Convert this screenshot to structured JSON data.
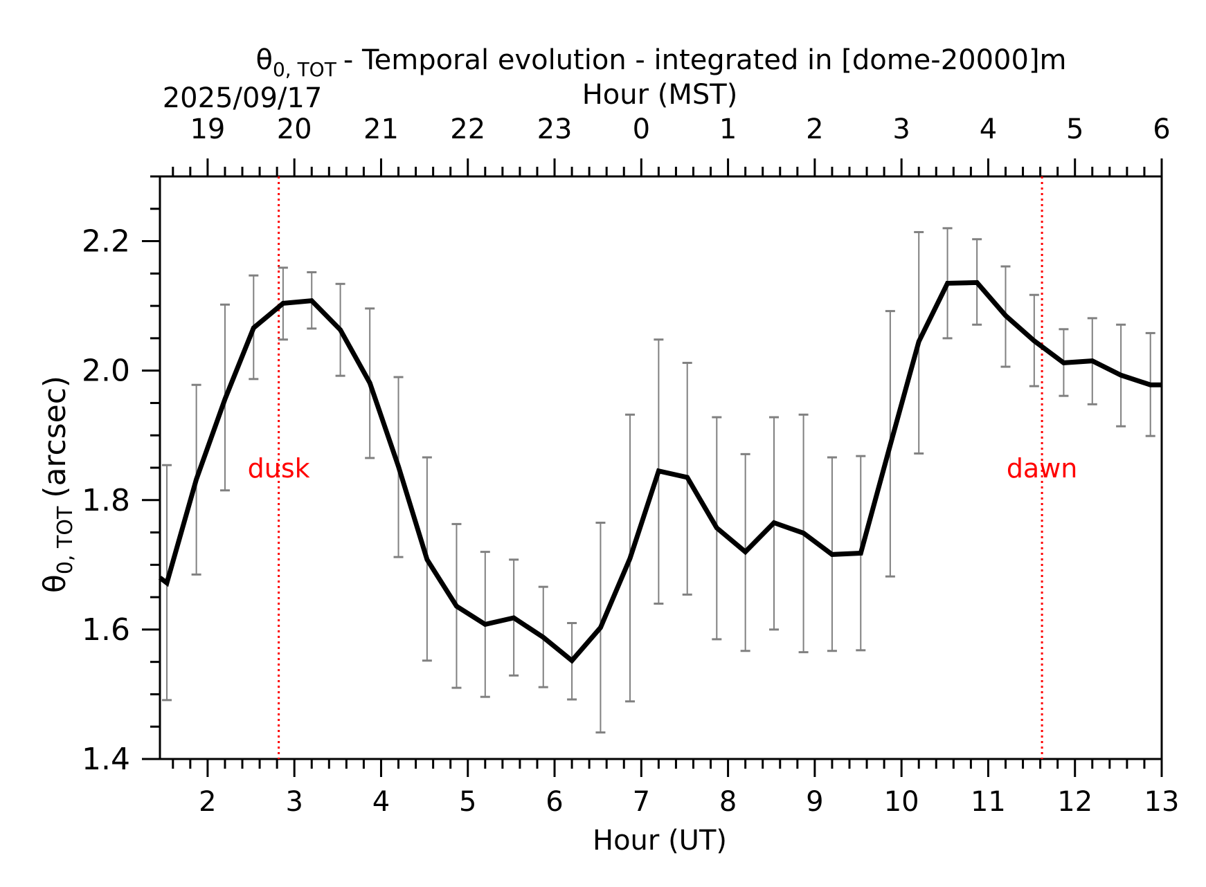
{
  "chart_data": {
    "type": "line",
    "title": "- Temporal evolution - integrated in [dome-20000]m",
    "title_symbol": "θ",
    "title_subscript": "0, TOT",
    "date_label": "2025/09/17",
    "xlabel": "Hour (UT)",
    "x2label": "Hour (MST)",
    "ylabel": "(arcsec)",
    "ylabel_symbol": "θ",
    "ylabel_subscript": "0, TOT",
    "xlim": [
      1.45,
      13.0
    ],
    "ylim": [
      1.4,
      2.3
    ],
    "x_ticks": [
      2,
      3,
      4,
      5,
      6,
      7,
      8,
      9,
      10,
      11,
      12,
      13
    ],
    "x_tick_labels": [
      "2",
      "3",
      "4",
      "5",
      "6",
      "7",
      "8",
      "9",
      "10",
      "11",
      "12",
      "13"
    ],
    "x2_tick_labels": [
      "19",
      "20",
      "21",
      "22",
      "23",
      "0",
      "1",
      "2",
      "3",
      "4",
      "5",
      "6"
    ],
    "y_ticks": [
      1.4,
      1.6,
      1.8,
      2.0,
      2.2
    ],
    "y_tick_labels": [
      "1.4",
      "1.6",
      "1.8",
      "2.0",
      "2.2"
    ],
    "grid": false,
    "series": [
      {
        "color": "#000000",
        "x": [
          1.45,
          1.53,
          1.87,
          2.2,
          2.53,
          2.87,
          3.2,
          3.53,
          3.87,
          4.2,
          4.53,
          4.87,
          5.2,
          5.53,
          5.87,
          6.2,
          6.53,
          6.87,
          7.2,
          7.53,
          7.87,
          8.2,
          8.53,
          8.87,
          9.2,
          9.53,
          9.87,
          10.2,
          10.53,
          10.87,
          11.2,
          11.53,
          11.87,
          12.2,
          12.53,
          12.87,
          13.0
        ],
        "y": [
          1.68,
          1.672,
          1.832,
          1.956,
          2.066,
          2.104,
          2.108,
          2.063,
          1.981,
          1.852,
          1.708,
          1.636,
          1.608,
          1.618,
          1.588,
          1.552,
          1.603,
          1.71,
          1.845,
          1.835,
          1.757,
          1.72,
          1.765,
          1.749,
          1.716,
          1.718,
          1.885,
          2.045,
          2.135,
          2.136,
          2.085,
          2.046,
          2.012,
          2.015,
          1.993,
          1.978,
          1.978
        ]
      }
    ],
    "error_bars": {
      "color": "#808080",
      "x": [
        1.53,
        1.87,
        2.2,
        2.53,
        2.87,
        3.2,
        3.53,
        3.87,
        4.2,
        4.53,
        4.87,
        5.2,
        5.53,
        5.87,
        6.2,
        6.53,
        6.87,
        7.2,
        7.53,
        7.87,
        8.2,
        8.53,
        8.87,
        9.2,
        9.53,
        9.87,
        10.2,
        10.53,
        10.87,
        11.2,
        11.53,
        11.87,
        12.2,
        12.53,
        12.87
      ],
      "low": [
        1.491,
        1.685,
        1.815,
        1.987,
        2.048,
        2.065,
        1.992,
        1.865,
        1.712,
        1.552,
        1.51,
        1.496,
        1.529,
        1.511,
        1.492,
        1.441,
        1.489,
        1.64,
        1.654,
        1.585,
        1.567,
        1.6,
        1.565,
        1.567,
        1.568,
        1.682,
        1.872,
        2.05,
        2.071,
        2.006,
        1.976,
        1.961,
        1.948,
        1.914,
        1.899
      ],
      "high": [
        1.854,
        1.978,
        2.102,
        2.147,
        2.159,
        2.152,
        2.134,
        2.096,
        1.99,
        1.866,
        1.763,
        1.72,
        1.708,
        1.666,
        1.61,
        1.765,
        1.932,
        2.048,
        2.012,
        1.928,
        1.871,
        1.928,
        1.932,
        1.866,
        1.868,
        2.092,
        2.214,
        2.22,
        2.203,
        2.161,
        2.117,
        2.064,
        2.081,
        2.071,
        2.058
      ]
    },
    "annotations": [
      {
        "text": "dusk",
        "x": 2.82,
        "color": "#ff0000",
        "line_style": "dotted"
      },
      {
        "text": "dawn",
        "x": 11.62,
        "color": "#ff0000",
        "line_style": "dotted"
      }
    ]
  }
}
